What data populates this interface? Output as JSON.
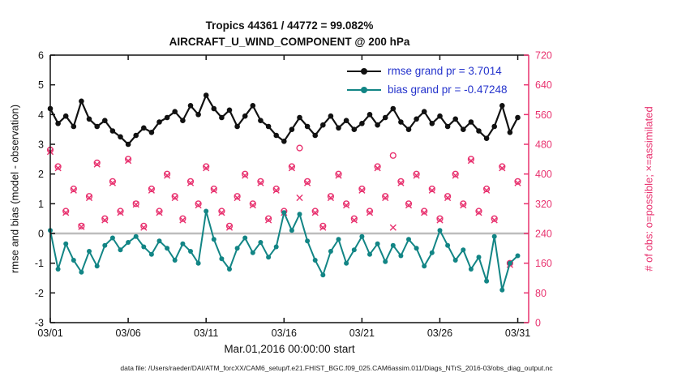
{
  "title": {
    "line1": "Tropics 44361 / 44772 = 99.082%",
    "line2": "AIRCRAFT_U_WIND_COMPONENT @ 200 hPa"
  },
  "legend": [
    {
      "label": "rmse grand pr = 3.7014",
      "color": "#111111",
      "marker": "filled-circle"
    },
    {
      "label": "bias grand pr = -0.47248",
      "color": "#128585",
      "marker": "filled-circle"
    }
  ],
  "footer": "data file: /Users/raeder/DAI/ATM_forcXX/CAM6_setup/f.e21.FHIST_BGC.f09_025.CAM6assim.011/Diags_NTrS_2016-03/obs_diag_output.nc",
  "colors": {
    "rmse": "#111111",
    "bias": "#128585",
    "obs": "#e8326f",
    "legend_text": "#2433cc",
    "zero_line": "#bdbdbd",
    "axis": "#111111"
  },
  "chart_data": {
    "type": "line",
    "title": "Tropics 44361 / 44772 = 99.082% — AIRCRAFT_U_WIND_COMPONENT @ 200 hPa",
    "xlabel": "Mar.01,2016 00:00:00 start",
    "ylabel_left": "rmse and bias (model - observation)",
    "ylabel_right": "# of obs: o=possible; ×=assimilated",
    "xlim": [
      1,
      31.7
    ],
    "ylim_left": [
      -3,
      6
    ],
    "ylim_right": [
      0,
      720
    ],
    "x_ticks": [
      1,
      6,
      11,
      16,
      21,
      26,
      31
    ],
    "x_tick_labels": [
      "03/01",
      "03/06",
      "03/11",
      "03/16",
      "03/21",
      "03/26",
      "03/31"
    ],
    "y_ticks_left": [
      -3,
      -2,
      -1,
      0,
      1,
      2,
      3,
      4,
      5,
      6
    ],
    "y_ticks_right": [
      0,
      80,
      160,
      240,
      320,
      400,
      480,
      560,
      640,
      720
    ],
    "zero_line": 0,
    "grid": false,
    "legend_position": "top-right-inside",
    "x": [
      1,
      1.5,
      2,
      2.5,
      3,
      3.5,
      4,
      4.5,
      5,
      5.5,
      6,
      6.5,
      7,
      7.5,
      8,
      8.5,
      9,
      9.5,
      10,
      10.5,
      11,
      11.5,
      12,
      12.5,
      13,
      13.5,
      14,
      14.5,
      15,
      15.5,
      16,
      16.5,
      17,
      17.5,
      18,
      18.5,
      19,
      19.5,
      20,
      20.5,
      21,
      21.5,
      22,
      22.5,
      23,
      23.5,
      24,
      24.5,
      25,
      25.5,
      26,
      26.5,
      27,
      27.5,
      28,
      28.5,
      29,
      29.5,
      30,
      30.5,
      31
    ],
    "series": [
      {
        "name": "rmse",
        "axis": "left",
        "color": "#111111",
        "marker": "filled-circle",
        "grand_mean": 3.7014,
        "values": [
          4.2,
          3.7,
          3.95,
          3.6,
          4.45,
          3.85,
          3.6,
          3.8,
          3.45,
          3.25,
          3.0,
          3.3,
          3.55,
          3.4,
          3.75,
          3.9,
          4.1,
          3.8,
          4.3,
          4.0,
          4.65,
          4.2,
          3.9,
          4.15,
          3.6,
          3.95,
          4.3,
          3.8,
          3.6,
          3.3,
          3.1,
          3.5,
          3.9,
          3.6,
          3.3,
          3.65,
          3.95,
          3.55,
          3.8,
          3.5,
          3.7,
          4.0,
          3.65,
          3.9,
          4.2,
          3.75,
          3.5,
          3.85,
          4.1,
          3.7,
          3.95,
          3.6,
          3.85,
          3.5,
          3.75,
          3.45,
          3.2,
          3.6,
          4.3,
          3.4,
          3.9
        ]
      },
      {
        "name": "bias",
        "axis": "left",
        "color": "#128585",
        "marker": "filled-circle",
        "grand_mean": -0.47248,
        "values": [
          0.1,
          -1.2,
          -0.35,
          -0.9,
          -1.3,
          -0.6,
          -1.1,
          -0.4,
          -0.15,
          -0.55,
          -0.3,
          -0.1,
          -0.45,
          -0.7,
          -0.25,
          -0.5,
          -0.9,
          -0.35,
          -0.6,
          -1.0,
          0.75,
          -0.2,
          -0.85,
          -1.2,
          -0.5,
          -0.15,
          -0.65,
          -0.3,
          -0.8,
          -0.45,
          0.7,
          0.1,
          0.65,
          -0.25,
          -0.9,
          -1.4,
          -0.6,
          -0.2,
          -1.0,
          -0.55,
          -0.1,
          -0.7,
          -0.35,
          -0.95,
          -0.4,
          -0.75,
          -0.2,
          -0.5,
          -1.1,
          -0.65,
          0.1,
          -0.4,
          -0.9,
          -0.55,
          -1.2,
          -0.8,
          -1.6,
          -0.1,
          -1.9,
          -1.0,
          -0.75
        ]
      },
      {
        "name": "possible_obs",
        "axis": "right",
        "color": "#e8326f",
        "marker": "open-circle",
        "values": [
          465,
          420,
          300,
          360,
          260,
          340,
          430,
          280,
          380,
          300,
          440,
          320,
          260,
          360,
          300,
          400,
          340,
          280,
          380,
          320,
          420,
          360,
          300,
          260,
          340,
          400,
          320,
          380,
          280,
          360,
          300,
          420,
          470,
          380,
          300,
          260,
          340,
          400,
          320,
          280,
          360,
          300,
          420,
          340,
          450,
          380,
          320,
          400,
          300,
          360,
          280,
          340,
          400,
          320,
          440,
          300,
          360,
          280,
          420,
          160,
          380
        ]
      },
      {
        "name": "assimilated_obs",
        "axis": "right",
        "color": "#e8326f",
        "marker": "x",
        "values": [
          460,
          416,
          296,
          356,
          258,
          336,
          426,
          276,
          376,
          296,
          436,
          318,
          256,
          356,
          296,
          396,
          336,
          276,
          376,
          316,
          416,
          356,
          296,
          256,
          336,
          396,
          316,
          376,
          276,
          356,
          296,
          416,
          336,
          376,
          296,
          256,
          336,
          396,
          316,
          276,
          356,
          296,
          416,
          336,
          256,
          376,
          316,
          396,
          296,
          356,
          276,
          336,
          396,
          316,
          436,
          296,
          356,
          276,
          416,
          156,
          376
        ]
      }
    ]
  }
}
